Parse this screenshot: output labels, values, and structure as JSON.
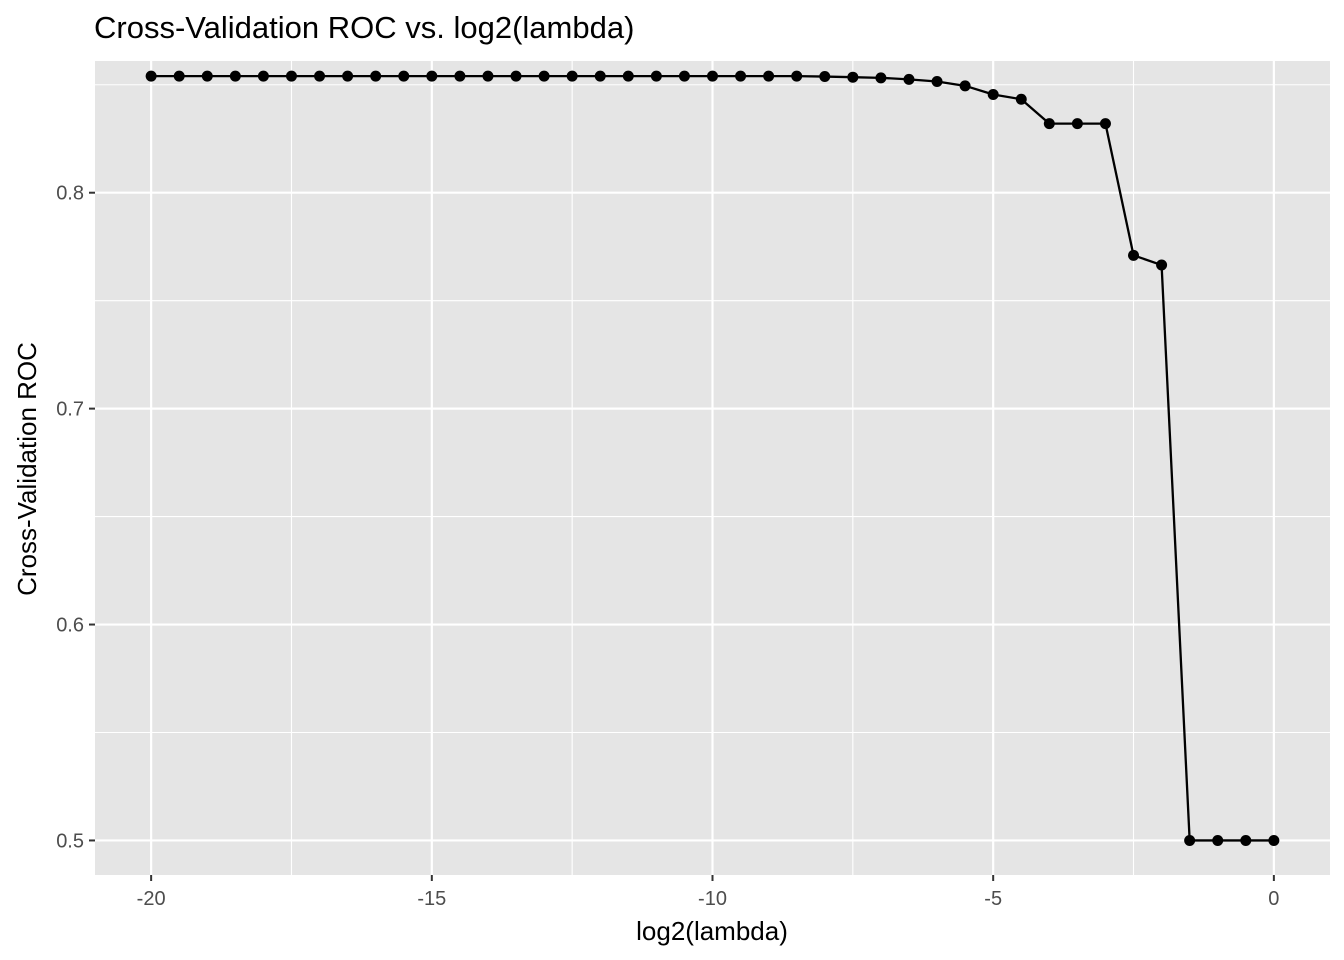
{
  "chart_data": {
    "type": "line",
    "title": "Cross-Validation ROC vs. log2(lambda)",
    "xlabel": "log2(lambda)",
    "ylabel": "Cross-Validation ROC",
    "xlim": [
      -21,
      1
    ],
    "ylim": [
      0.484,
      0.861
    ],
    "x_ticks": [
      -20,
      -15,
      -10,
      -5,
      0
    ],
    "x_tick_labels": [
      "-20",
      "-15",
      "-10",
      "-5",
      "0"
    ],
    "x_minor_ticks": [
      -17.5,
      -12.5,
      -7.5,
      -2.5
    ],
    "y_ticks": [
      0.5,
      0.6,
      0.7,
      0.8
    ],
    "y_tick_labels": [
      "0.5",
      "0.6",
      "0.7",
      "0.8"
    ],
    "y_minor_ticks": [
      0.55,
      0.65,
      0.75,
      0.85
    ],
    "grid": true,
    "legend": "none",
    "colors": {
      "panel_background": "#e5e5e5",
      "grid": "#ffffff",
      "line": "#000000",
      "points": "#000000",
      "tick_label": "#4d4d4d"
    },
    "series": [
      {
        "x": [
          -20,
          -19.5,
          -19,
          -18.5,
          -18,
          -17.5,
          -17,
          -16.5,
          -16,
          -15.5,
          -15,
          -14.5,
          -14,
          -13.5,
          -13,
          -12.5,
          -12,
          -11.5,
          -11,
          -10.5,
          -10,
          -9.5,
          -9,
          -8.5,
          -8,
          -7.5,
          -7,
          -6.5,
          -6,
          -5.5,
          -5,
          -4.5,
          -4,
          -3.5,
          -3,
          -2.5,
          -2,
          -1.5,
          -1,
          -0.5,
          0
        ],
        "values": [
          0.854,
          0.854,
          0.854,
          0.854,
          0.854,
          0.854,
          0.854,
          0.854,
          0.854,
          0.854,
          0.854,
          0.854,
          0.854,
          0.854,
          0.854,
          0.854,
          0.854,
          0.854,
          0.854,
          0.854,
          0.854,
          0.854,
          0.854,
          0.854,
          0.8538,
          0.8535,
          0.8532,
          0.8525,
          0.8515,
          0.8495,
          0.8455,
          0.8433,
          0.832,
          0.832,
          0.832,
          0.771,
          0.7665,
          0.5,
          0.5,
          0.5,
          0.5
        ]
      }
    ]
  }
}
